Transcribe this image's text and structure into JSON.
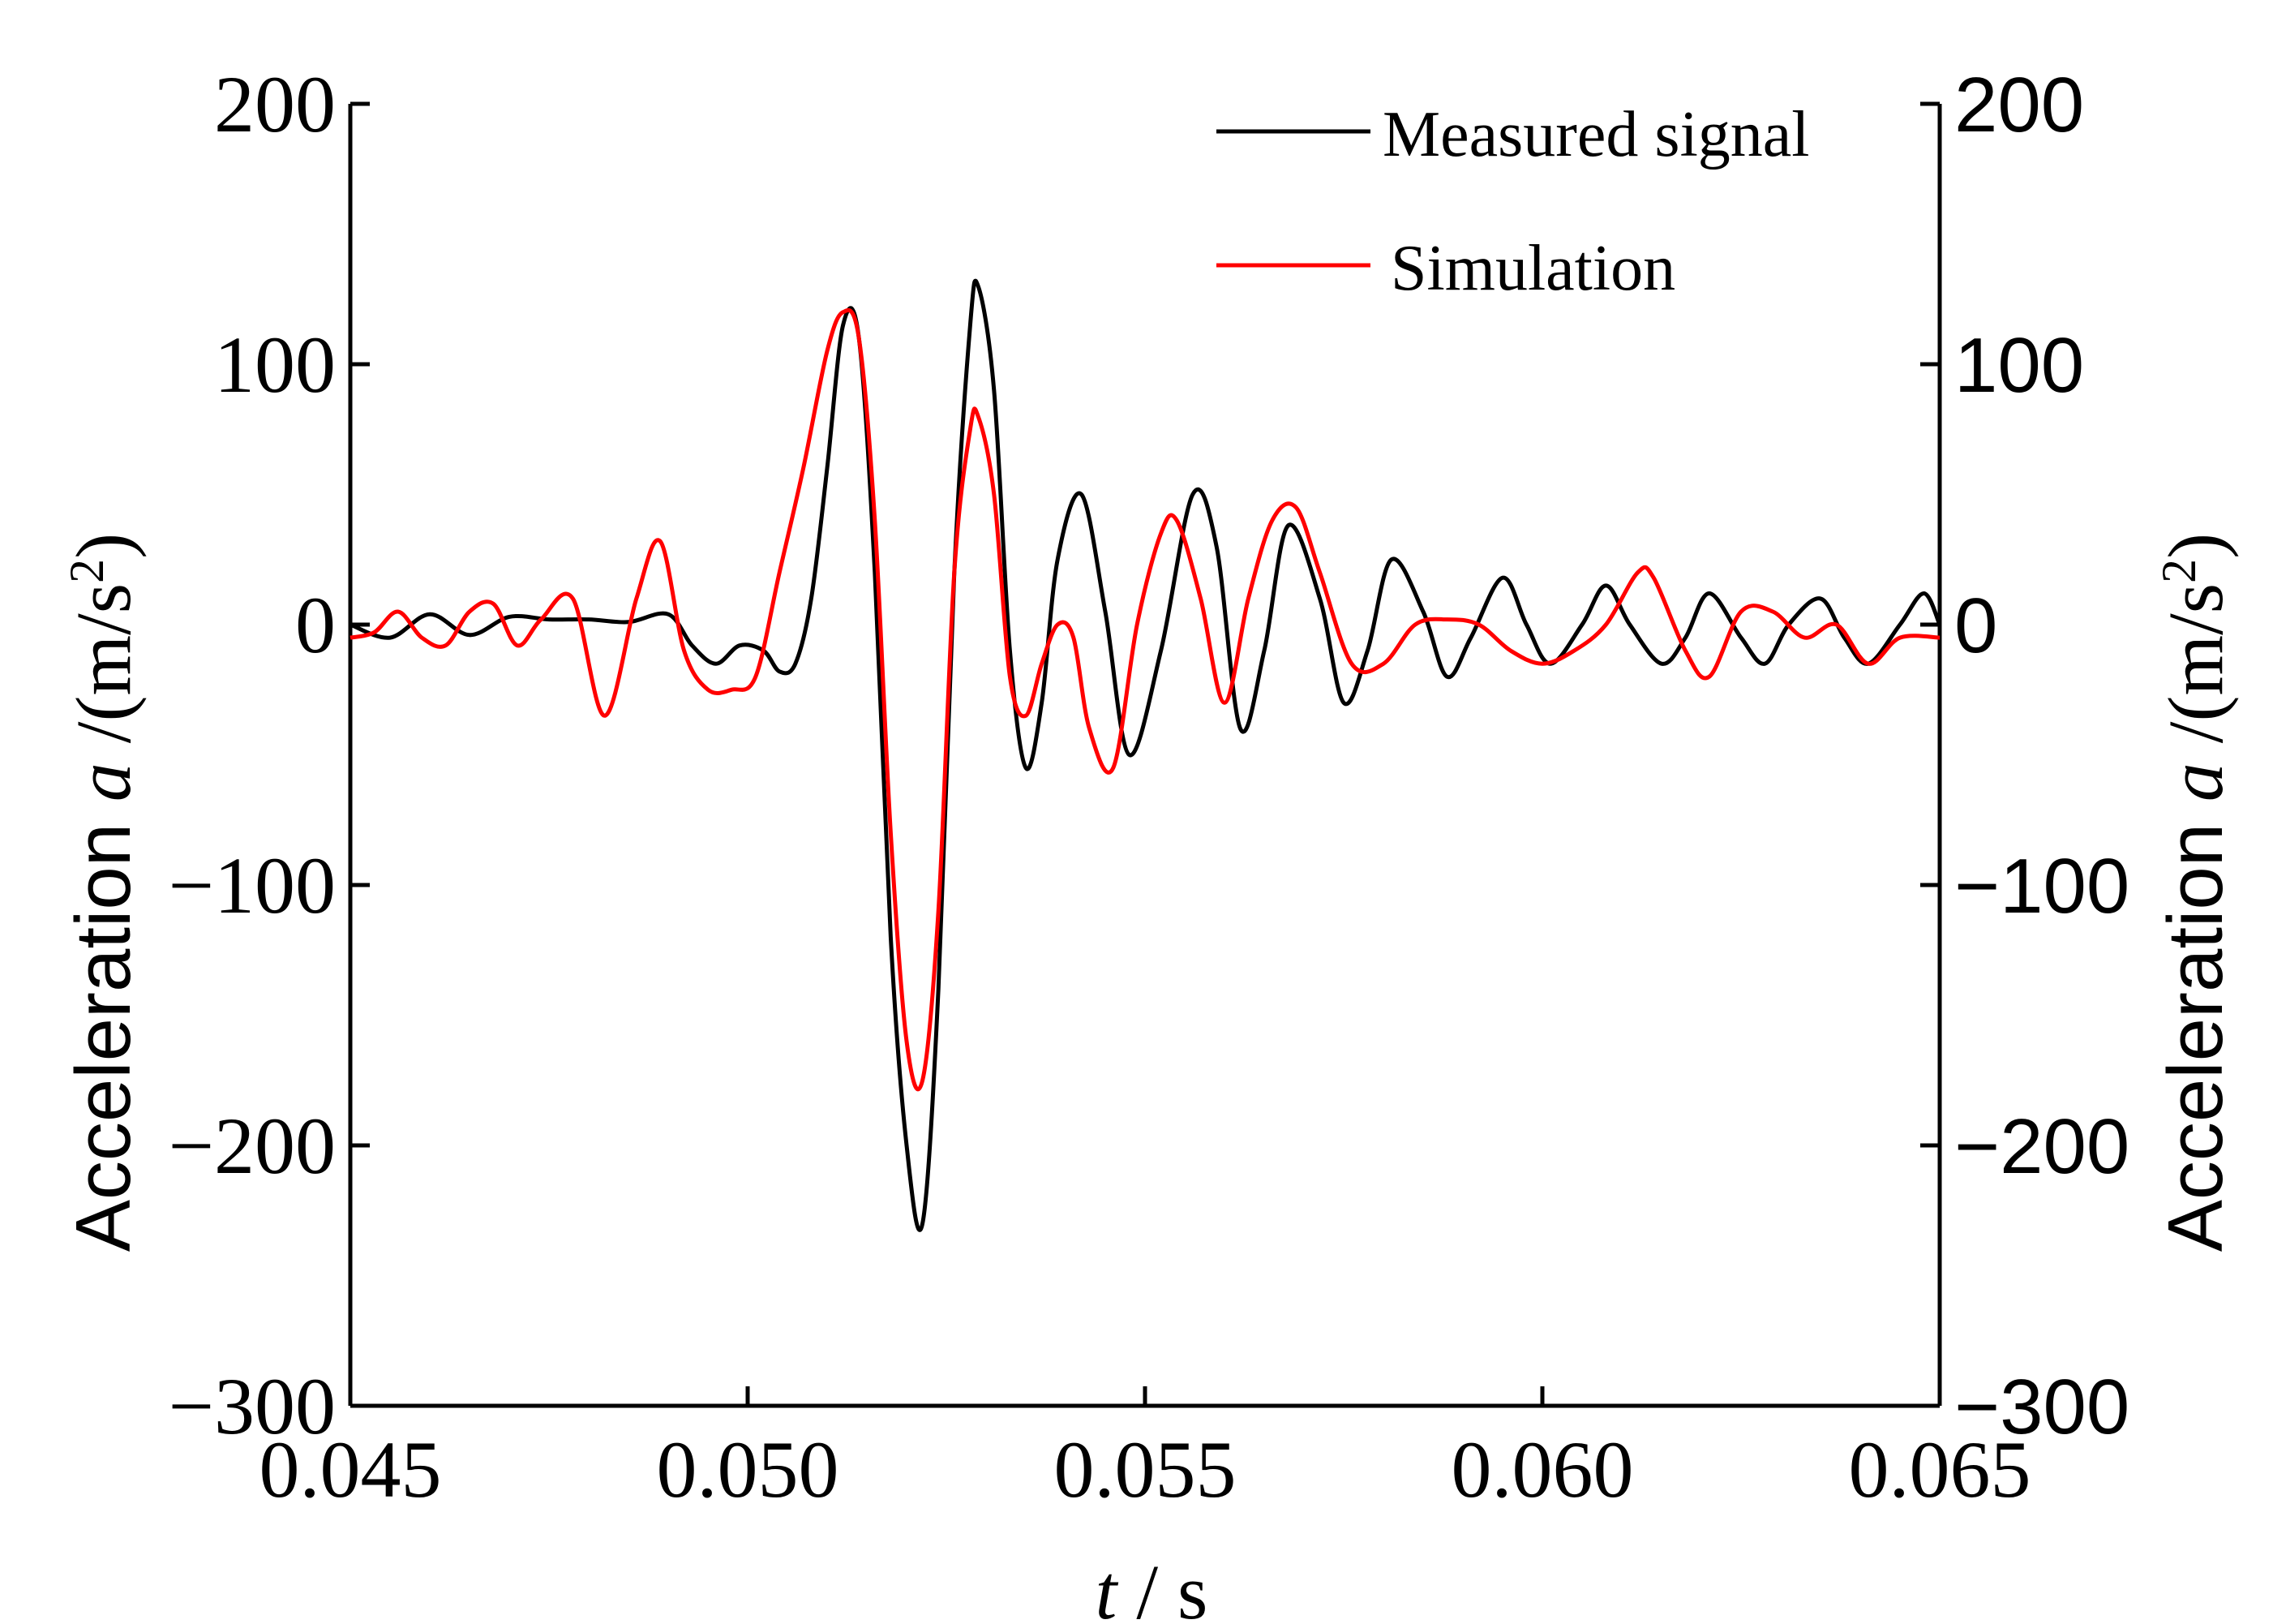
{
  "chart_data": {
    "type": "line",
    "xlabel": "t / s",
    "xlabel_parts": [
      "t",
      " / s"
    ],
    "ylabel_left": "Acceleration a /(m/s²)",
    "ylabel_right": "Acceleration a /(m/s²)",
    "ylabel_parts": [
      "Acceleration ",
      "a",
      " /(m/s",
      "2",
      ")"
    ],
    "xlim": [
      0.045,
      0.065
    ],
    "ylim": [
      -300,
      200
    ],
    "x_ticks": [
      0.045,
      0.05,
      0.055,
      0.06,
      0.065
    ],
    "x_tick_labels": [
      "0.045",
      "0.050",
      "0.055",
      "0.060",
      "0.065"
    ],
    "y_ticks": [
      -300,
      -200,
      -100,
      0,
      100,
      200
    ],
    "y_tick_labels_left": [
      "−300",
      "−200",
      "−100",
      "0",
      "100",
      "200"
    ],
    "y_tick_labels_right": [
      "−300",
      "−200",
      "−100",
      "0",
      "100",
      "200"
    ],
    "grid": false,
    "legend_position": "top-right",
    "series": [
      {
        "name": "Measured signal",
        "color": "#000000",
        "x": [
          0.045,
          0.0455,
          0.046,
          0.0465,
          0.047,
          0.0475,
          0.048,
          0.0485,
          0.049,
          0.0493,
          0.0496,
          0.0499,
          0.0502,
          0.0504,
          0.0506,
          0.0508,
          0.051,
          0.0512,
          0.0514,
          0.0516,
          0.0518,
          0.052,
          0.0522,
          0.0524,
          0.0526,
          0.0528,
          0.0529,
          0.0531,
          0.0533,
          0.0535,
          0.0537,
          0.0539,
          0.0542,
          0.0545,
          0.0548,
          0.0552,
          0.0556,
          0.0559,
          0.0562,
          0.0565,
          0.0568,
          0.0572,
          0.0575,
          0.0578,
          0.0581,
          0.0585,
          0.0588,
          0.0591,
          0.0595,
          0.0598,
          0.0601,
          0.0605,
          0.0608,
          0.0611,
          0.0615,
          0.0618,
          0.0621,
          0.0625,
          0.0628,
          0.0631,
          0.0635,
          0.0638,
          0.0641,
          0.0645,
          0.0648,
          0.065
        ],
        "values": [
          0,
          -5,
          4,
          -4,
          3,
          2,
          2,
          1,
          4,
          -8,
          -15,
          -8,
          -10,
          -18,
          -15,
          10,
          60,
          115,
          110,
          20,
          -120,
          -200,
          -230,
          -140,
          20,
          115,
          130,
          90,
          -10,
          -55,
          -30,
          25,
          50,
          5,
          -50,
          -10,
          50,
          30,
          -40,
          -10,
          38,
          10,
          -30,
          -10,
          25,
          5,
          -20,
          -5,
          18,
          0,
          -15,
          0,
          15,
          0,
          -15,
          -5,
          12,
          -5,
          -15,
          0,
          10,
          -5,
          -15,
          0,
          12,
          0
        ]
      },
      {
        "name": "Simulation",
        "color": "#ff0000",
        "x": [
          0.045,
          0.0453,
          0.0456,
          0.0459,
          0.0462,
          0.0465,
          0.0468,
          0.0471,
          0.0474,
          0.0478,
          0.0482,
          0.0486,
          0.0489,
          0.0492,
          0.0495,
          0.0498,
          0.0501,
          0.0504,
          0.0507,
          0.051,
          0.0512,
          0.0514,
          0.0516,
          0.0518,
          0.052,
          0.0522,
          0.0524,
          0.0526,
          0.0528,
          0.0529,
          0.0531,
          0.0533,
          0.0535,
          0.0537,
          0.0539,
          0.0541,
          0.0543,
          0.0546,
          0.0549,
          0.0552,
          0.0554,
          0.0557,
          0.056,
          0.0563,
          0.0566,
          0.0569,
          0.0572,
          0.0576,
          0.058,
          0.0584,
          0.0588,
          0.0592,
          0.0596,
          0.06,
          0.0604,
          0.0608,
          0.0612,
          0.0614,
          0.0618,
          0.0621,
          0.0625,
          0.0629,
          0.0633,
          0.0637,
          0.0641,
          0.0645,
          0.065
        ],
        "values": [
          -5,
          -3,
          5,
          -5,
          -8,
          5,
          8,
          -8,
          2,
          10,
          -35,
          10,
          32,
          -10,
          -25,
          -25,
          -20,
          20,
          60,
          105,
          120,
          110,
          40,
          -80,
          -160,
          -175,
          -110,
          20,
          75,
          80,
          50,
          -20,
          -35,
          -15,
          0,
          -5,
          -40,
          -55,
          0,
          35,
          40,
          10,
          -30,
          10,
          40,
          45,
          20,
          -15,
          -15,
          0,
          2,
          0,
          -10,
          -15,
          -10,
          0,
          20,
          18,
          -10,
          -20,
          5,
          5,
          -5,
          0,
          -15,
          -5,
          -5
        ]
      }
    ]
  }
}
